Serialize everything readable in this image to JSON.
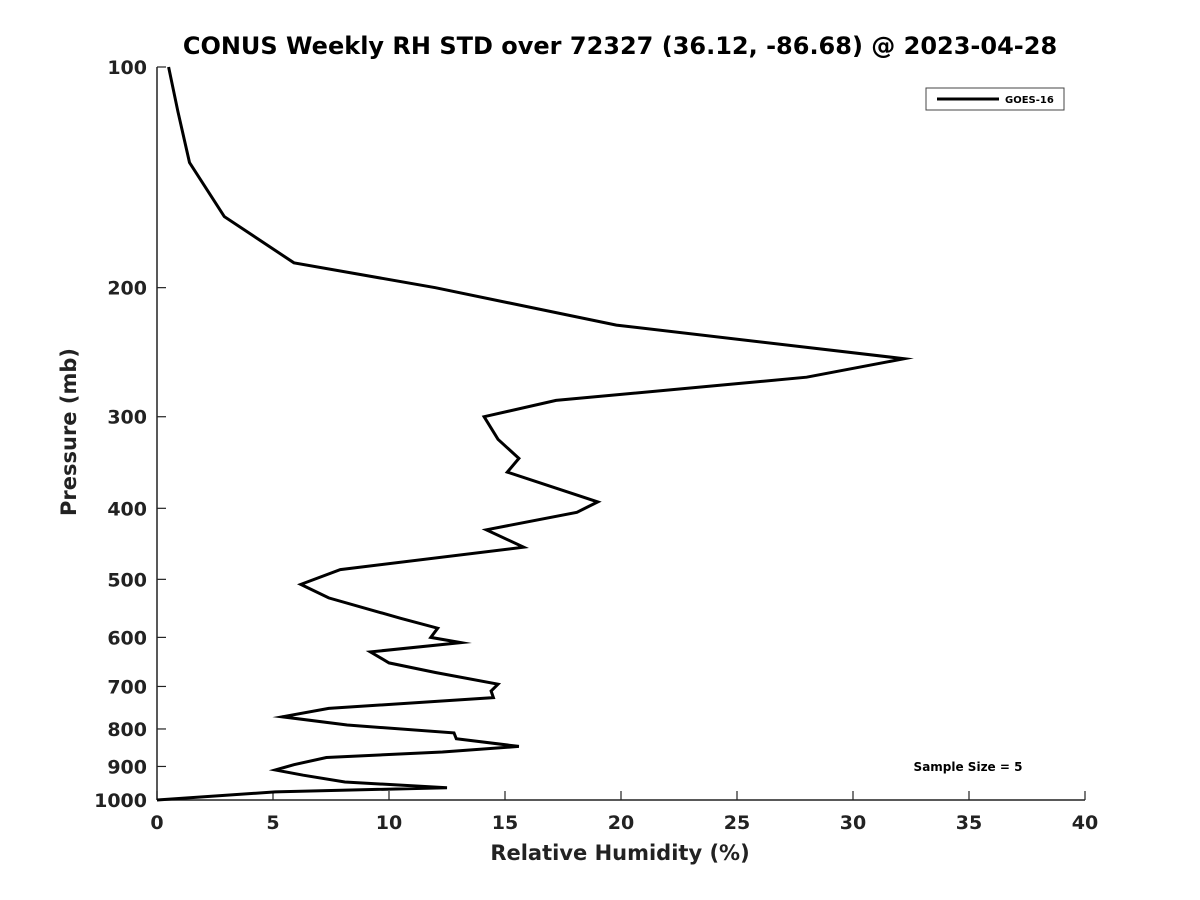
{
  "chart_data": {
    "type": "line",
    "title": "CONUS Weekly RH STD over 72327 (36.12, -86.68) @ 2023-04-28",
    "xlabel": "Relative Humidity (%)",
    "ylabel": "Pressure (mb)",
    "xlim": [
      0,
      40
    ],
    "ylim": [
      100,
      1000
    ],
    "yscale": "log",
    "y_reversed": true,
    "x_ticks": [
      "0",
      "5",
      "10",
      "15",
      "20",
      "25",
      "30",
      "35",
      "40"
    ],
    "y_ticks": [
      "100",
      "200",
      "300",
      "400",
      "500",
      "600",
      "700",
      "800",
      "900",
      "1000"
    ],
    "grid": false,
    "legend_position": "top-right",
    "series": [
      {
        "name": "GOES-16",
        "color": "#000000",
        "x": [
          0.5,
          0.9,
          1.4,
          2.9,
          5.9,
          12.0,
          19.8,
          32.2,
          28.0,
          17.2,
          14.1,
          14.7,
          15.6,
          15.1,
          19.0,
          18.1,
          14.2,
          15.8,
          7.9,
          6.2,
          7.4,
          10.5,
          12.1,
          11.8,
          13.1,
          9.2,
          10.0,
          12.0,
          14.7,
          14.4,
          14.5,
          7.4,
          5.4,
          8.2,
          12.8,
          12.9,
          15.6,
          12.3,
          7.3,
          5.9,
          5.1,
          6.3,
          8.1,
          12.5,
          5.1,
          0.0
        ],
        "y": [
          100,
          115,
          135,
          160,
          185,
          200,
          225,
          250,
          265,
          285,
          300,
          322,
          342,
          357,
          392,
          405,
          428,
          452,
          485,
          508,
          530,
          565,
          583,
          600,
          610,
          628,
          650,
          670,
          695,
          710,
          725,
          750,
          770,
          790,
          810,
          825,
          845,
          860,
          875,
          895,
          910,
          925,
          945,
          962,
          975,
          1000
        ]
      }
    ],
    "annotations": [
      "Sample Size = 5"
    ]
  }
}
